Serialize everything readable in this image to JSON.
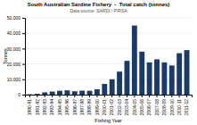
{
  "chart_data": {
    "type": "bar",
    "title": "South Australian Sardine Fishery  -  Total catch (tonnes)",
    "subtitle": "Data source: SARDI / PIRSA",
    "xlabel": "Fishing Year",
    "ylabel": "Tonnes",
    "categories": [
      "1990-91",
      "1991-92",
      "1992-93",
      "1993-94",
      "1994-95",
      "1995-96",
      "1996-97",
      "1997-98",
      "1998-99",
      "1999-00",
      "2000-01",
      "2001-02",
      "2002-03",
      "2003-04",
      "2004-05",
      "2005-06",
      "2006-07",
      "2007-08",
      "2008-09",
      "2009-10",
      "2010-11",
      "2011-12"
    ],
    "values": [
      200,
      500,
      1500,
      2000,
      2500,
      2800,
      2200,
      2600,
      2500,
      3500,
      7000,
      10000,
      15000,
      22000,
      45000,
      28000,
      21000,
      23000,
      21000,
      19000,
      27000,
      29000
    ],
    "color": "#1a3a6b",
    "ylim": [
      0,
      50000
    ],
    "yticks": [
      0,
      {
        "value": 10000,
        "label": "10,000"
      },
      {
        "value": 20000,
        "label": "20,000"
      },
      {
        "value": 30000,
        "label": "30,000"
      },
      {
        "value": 40000,
        "label": "40,000"
      },
      {
        "value": 50000,
        "label": "50,000"
      }
    ],
    "grid": true
  }
}
